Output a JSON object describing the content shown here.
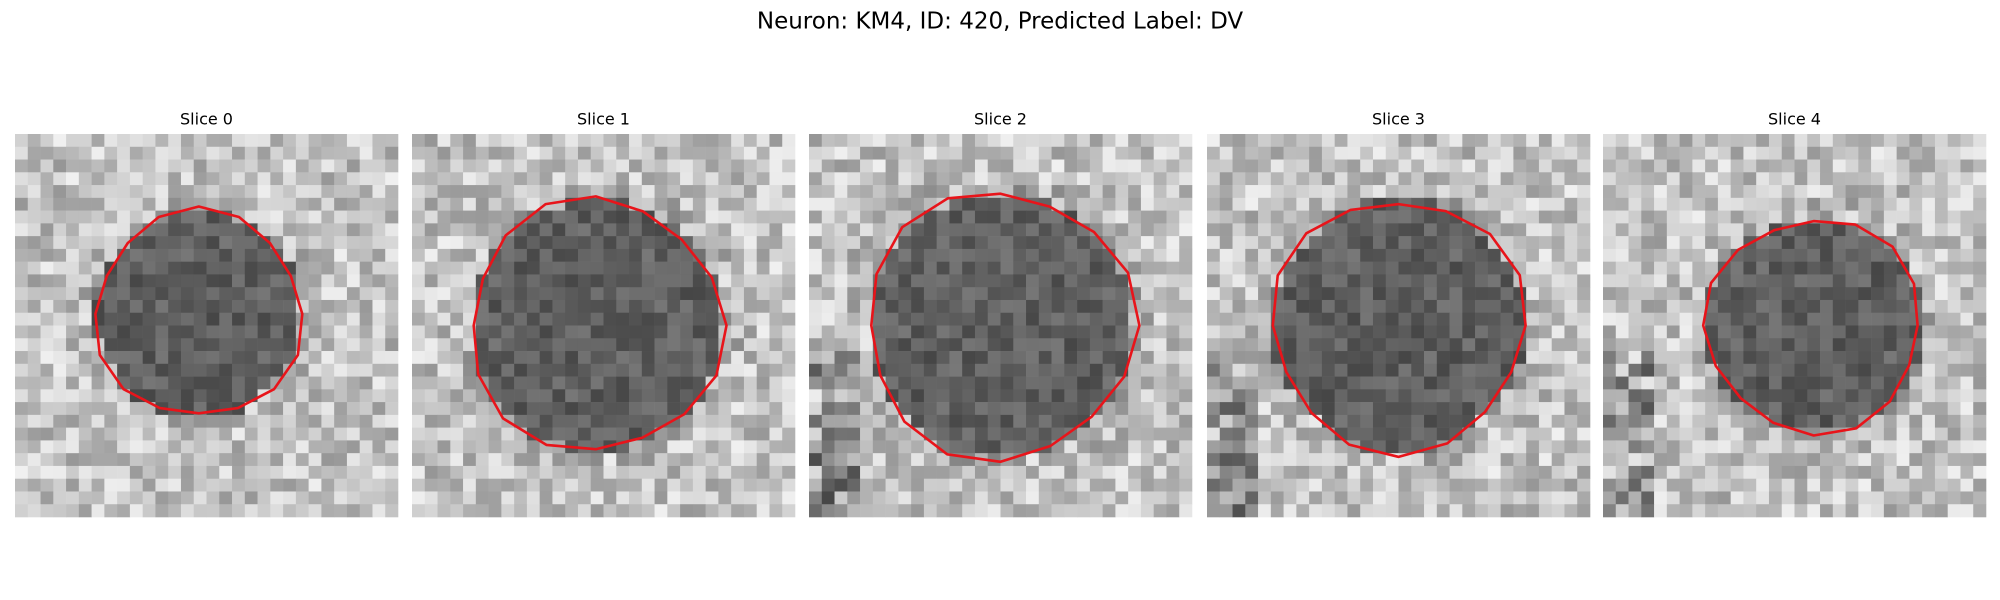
{
  "title": "Neuron: KM4, ID: 420, Predicted Label: DV",
  "panels": [
    {
      "title": "Slice 0"
    },
    {
      "title": "Slice 1"
    },
    {
      "title": "Slice 2"
    },
    {
      "title": "Slice 3"
    },
    {
      "title": "Slice 4"
    }
  ]
}
